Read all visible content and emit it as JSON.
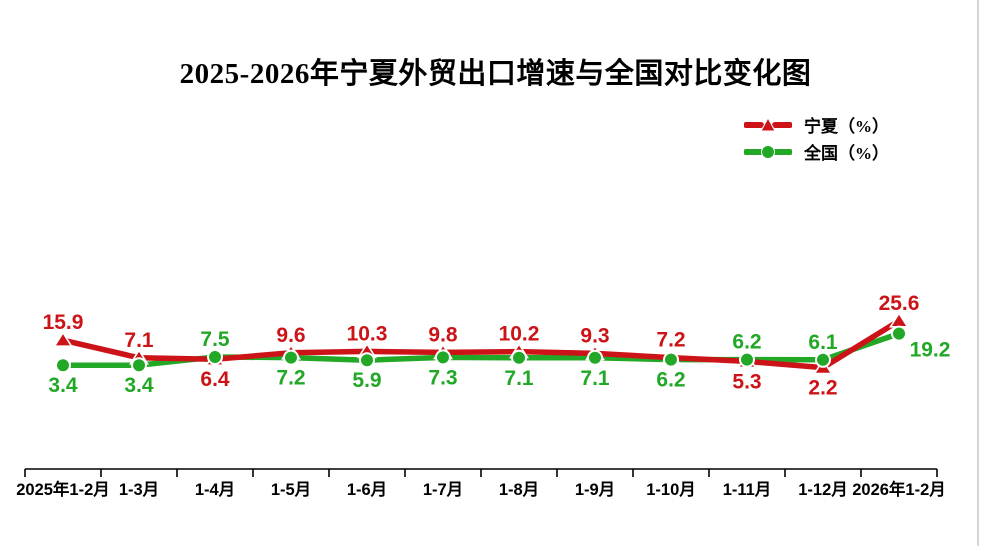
{
  "page": {
    "background_color": "#ffffff",
    "right_edge_line_color": "#d6d6d6"
  },
  "chart_data": {
    "type": "line",
    "title": "2025-2026年宁夏外贸出口增速与全国对比变化图",
    "categories": [
      "2025年1-2月",
      "1-3月",
      "1-4月",
      "1-5月",
      "1-6月",
      "1-7月",
      "1-8月",
      "1-9月",
      "1-10月",
      "1-11月",
      "1-12月",
      "2026年1-2月"
    ],
    "series": [
      {
        "name": "宁夏（%）",
        "color": "#cc1418",
        "marker": "triangle",
        "values": [
          15.9,
          7.1,
          6.4,
          9.6,
          10.3,
          9.8,
          10.2,
          9.3,
          7.2,
          5.3,
          2.2,
          25.6
        ]
      },
      {
        "name": "全国（%）",
        "color": "#22a826",
        "marker": "circle",
        "values": [
          3.4,
          3.4,
          7.5,
          7.2,
          5.9,
          7.3,
          7.1,
          7.1,
          6.2,
          6.2,
          6.1,
          19.2
        ]
      }
    ],
    "legend_position": "top-right",
    "grid": false,
    "data_labels": true,
    "y_axis_visible": false,
    "x_axis": {
      "line_color": "#000000",
      "tick_marks": true
    }
  }
}
